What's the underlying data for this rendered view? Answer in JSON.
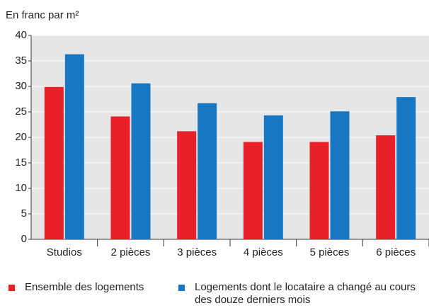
{
  "chart_data": {
    "type": "bar",
    "y_label": "En franc par m²",
    "categories": [
      "Studios",
      "2 pièces",
      "3 pièces",
      "4 pièces",
      "5 pièces",
      "6 pièces"
    ],
    "series": [
      {
        "name": "Ensemble des logements",
        "color": "#e8202a",
        "values": [
          29.9,
          24.1,
          21.2,
          19.1,
          19.1,
          20.4
        ]
      },
      {
        "name": "Logements dont le locataire a changé au cours des douze derniers mois",
        "color": "#1777c2",
        "values": [
          36.3,
          30.6,
          26.7,
          24.3,
          25.1,
          27.9
        ]
      }
    ],
    "ylim": [
      0,
      40
    ],
    "yticks": [
      0,
      5,
      10,
      15,
      20,
      25,
      30,
      35,
      40
    ],
    "grid": true
  }
}
